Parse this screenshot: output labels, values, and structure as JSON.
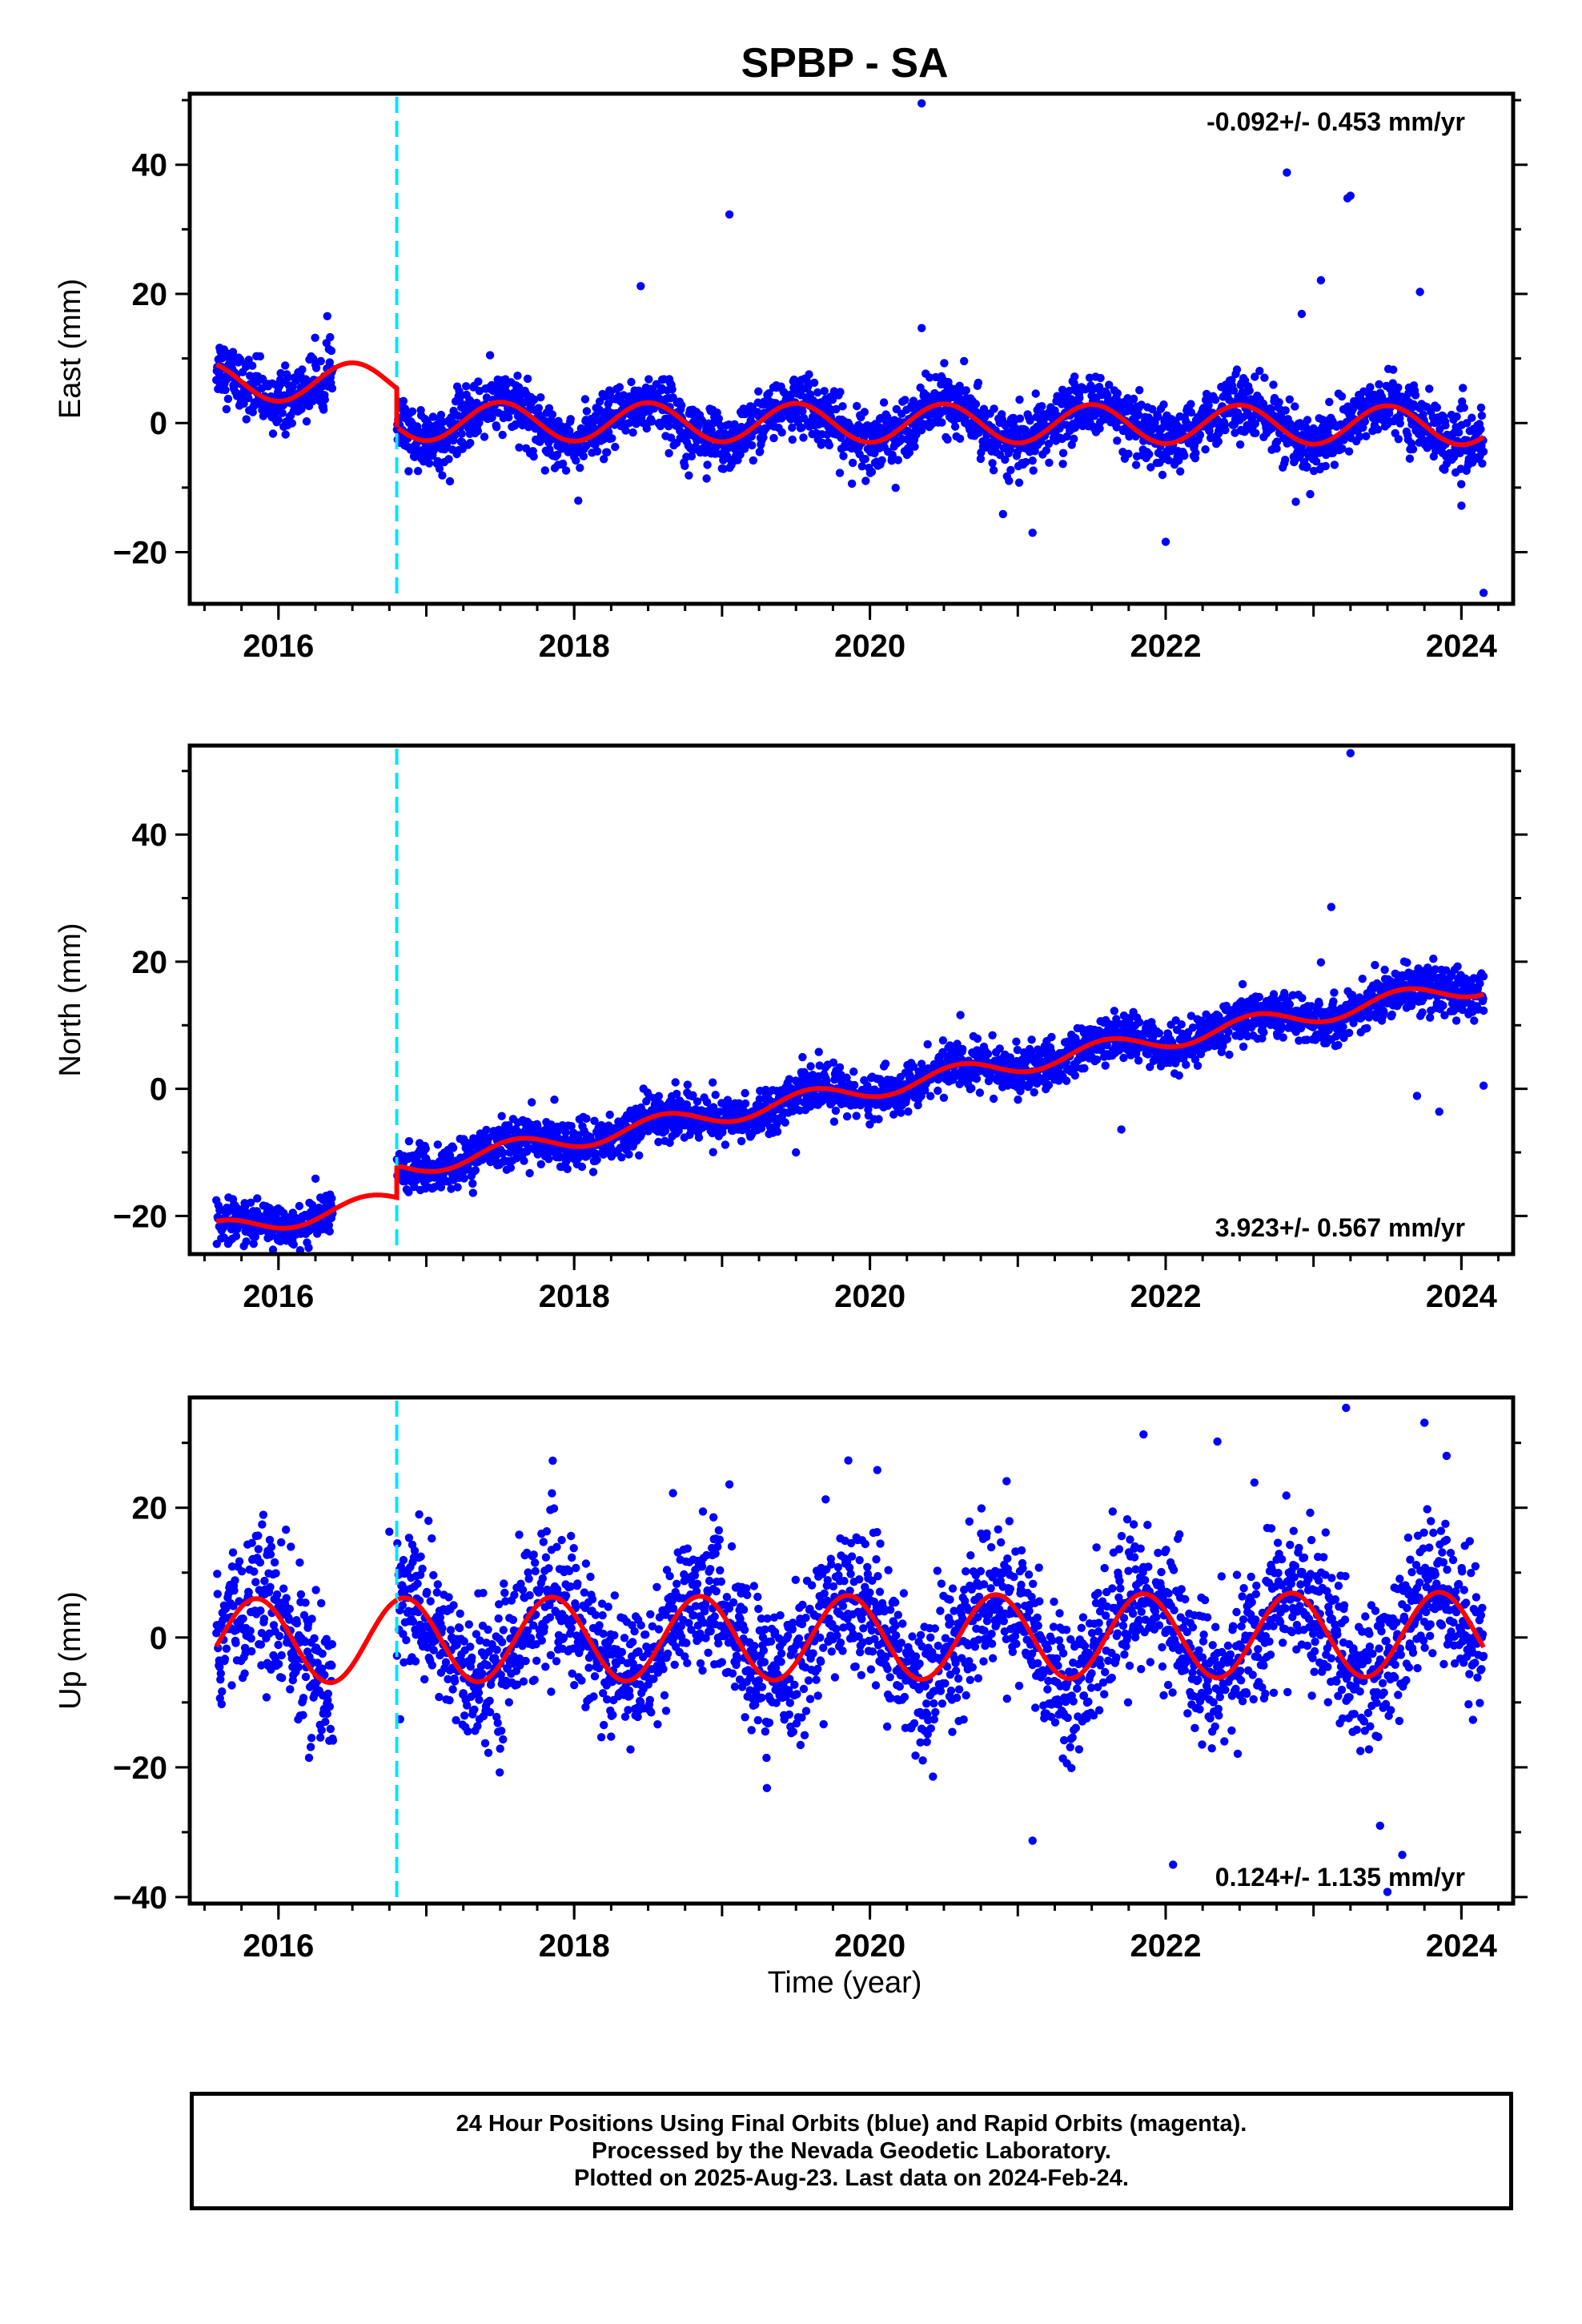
{
  "title": "SPBP - SA",
  "xlabel": "Time (year)",
  "colors": {
    "final_orbits": "#0000ff",
    "model": "#ff0000",
    "event": "#00e5ff",
    "frame": "#000000"
  },
  "footer": {
    "line1": "24 Hour Positions Using Final Orbits (blue) and Rapid Orbits (magenta).",
    "line2": "Processed by the Nevada Geodetic Laboratory.",
    "line3": "Plotted on 2025-Aug-23. Last data on 2024-Feb-24."
  },
  "chart_data": [
    {
      "type": "scatter",
      "component": "east",
      "ylabel": "East (mm)",
      "rate_text": "-0.092+/- 0.453 mm/yr",
      "rate_position": "top-right",
      "xlim": [
        2015.4,
        2024.35
      ],
      "ylim": [
        -28,
        51
      ],
      "xticks": [
        2016,
        2018,
        2020,
        2022,
        2024
      ],
      "yticks": [
        -20,
        0,
        20,
        40
      ],
      "event_line_x": 2016.8,
      "grid": false,
      "data_span": [
        2015.58,
        2024.15
      ],
      "trend": {
        "rate": -0.092,
        "offset": 0.0
      },
      "seasonal": {
        "annual_amp": 3.0,
        "phase_peak": 0.5,
        "noise_sd": 2.3
      },
      "offset_at_event": [
        -6.0
      ],
      "outliers": [
        [
          2020.35,
          49.5
        ],
        [
          2019.05,
          32.3
        ],
        [
          2018.45,
          21.2
        ],
        [
          2022.82,
          38.8
        ],
        [
          2023.25,
          35.2
        ],
        [
          2023.23,
          34.8
        ],
        [
          2023.05,
          22.1
        ],
        [
          2022.92,
          16.9
        ],
        [
          2023.72,
          20.3
        ],
        [
          2020.35,
          14.7
        ],
        [
          2021.1,
          -17.0
        ],
        [
          2022.0,
          -18.4
        ],
        [
          2024.15,
          -26.3
        ],
        [
          2024.0,
          -12.8
        ],
        [
          2020.9,
          -14.1
        ],
        [
          2022.88,
          -12.2
        ]
      ]
    },
    {
      "type": "scatter",
      "component": "north",
      "ylabel": "North (mm)",
      "rate_text": "3.923+/- 0.567 mm/yr",
      "rate_position": "bottom-right",
      "xlim": [
        2015.4,
        2024.35
      ],
      "ylim": [
        -26,
        54
      ],
      "xticks": [
        2016,
        2018,
        2020,
        2022,
        2024
      ],
      "yticks": [
        -20,
        0,
        20,
        40
      ],
      "event_line_x": 2016.8,
      "grid": false,
      "data_span": [
        2015.58,
        2024.15
      ],
      "trend": {
        "rate": 3.923,
        "offset": 0.0
      },
      "seasonal": {
        "annual_amp": 1.5,
        "phase_peak": 0.6,
        "noise_sd": 1.8
      },
      "offset_at_event": [
        5.0
      ],
      "outliers": [
        [
          2023.25,
          52.8
        ],
        [
          2023.12,
          28.6
        ],
        [
          2023.05,
          19.9
        ],
        [
          2023.7,
          -1.1
        ],
        [
          2023.85,
          -3.6
        ],
        [
          2024.15,
          0.5
        ],
        [
          2024.15,
          12.3
        ],
        [
          2021.7,
          -6.4
        ],
        [
          2019.5,
          -10.0
        ]
      ]
    },
    {
      "type": "scatter",
      "component": "up",
      "ylabel": "Up (mm)",
      "rate_text": "0.124+/- 1.135 mm/yr",
      "rate_position": "bottom-right",
      "xlim": [
        2015.4,
        2024.35
      ],
      "ylim": [
        -41,
        37
      ],
      "xticks": [
        2016,
        2018,
        2020,
        2022,
        2024
      ],
      "yticks": [
        -40,
        -20,
        0,
        20
      ],
      "event_line_x": 2016.8,
      "grid": false,
      "data_span": [
        2015.58,
        2024.15
      ],
      "trend": {
        "rate": 0.124,
        "offset": 0.0
      },
      "seasonal": {
        "annual_amp": 6.5,
        "phase_peak": 0.85,
        "noise_sd": 5.5
      },
      "offset_at_event": [
        0.0
      ],
      "outliers": [
        [
          2023.22,
          35.4
        ],
        [
          2023.75,
          33.1
        ],
        [
          2021.85,
          31.3
        ],
        [
          2022.35,
          30.2
        ],
        [
          2023.9,
          28.0
        ],
        [
          2021.1,
          -31.3
        ],
        [
          2022.05,
          -35.0
        ],
        [
          2023.5,
          -39.2
        ],
        [
          2023.6,
          -33.5
        ],
        [
          2023.45,
          -29.0
        ],
        [
          2019.05,
          23.6
        ],
        [
          2020.05,
          25.8
        ],
        [
          2016.75,
          16.3
        ]
      ]
    }
  ]
}
